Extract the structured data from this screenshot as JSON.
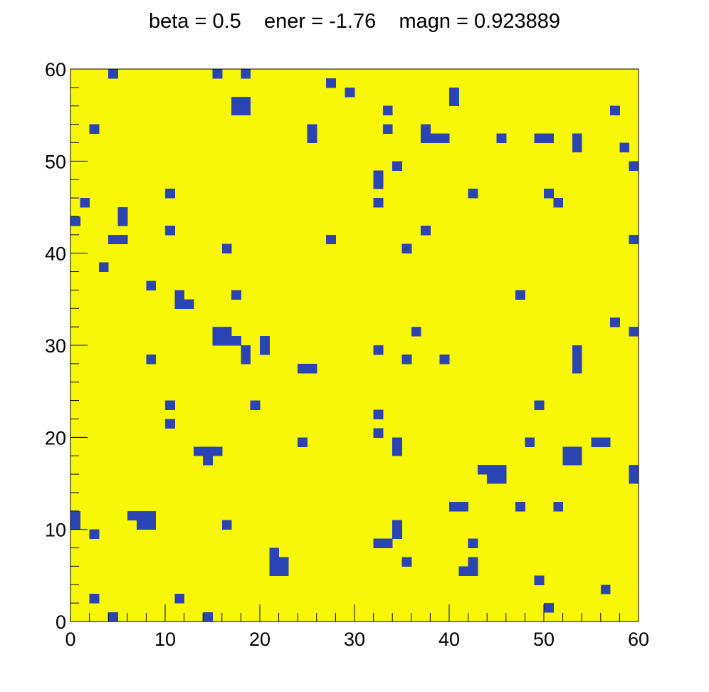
{
  "chart_data": {
    "type": "heatmap",
    "title": "beta = 0.5    ener = -1.76    magn = 0.923889",
    "xlabel": "",
    "ylabel": "",
    "xlim": [
      0,
      60
    ],
    "ylim": [
      0,
      60
    ],
    "grid_size": [
      60,
      60
    ],
    "x_ticks": [
      "0",
      "10",
      "20",
      "30",
      "40",
      "50",
      "60"
    ],
    "y_ticks": [
      "0",
      "10",
      "20",
      "30",
      "40",
      "50",
      "60"
    ],
    "colors": {
      "up": "#f7f707",
      "down": "#2b44b3"
    },
    "background_value": "up",
    "down_cells": [
      [
        4,
        59
      ],
      [
        15,
        59
      ],
      [
        18,
        59
      ],
      [
        27,
        58
      ],
      [
        29,
        57
      ],
      [
        40,
        57
      ],
      [
        40,
        56
      ],
      [
        17,
        56
      ],
      [
        18,
        56
      ],
      [
        17,
        55
      ],
      [
        18,
        55
      ],
      [
        33,
        55
      ],
      [
        57,
        55
      ],
      [
        2,
        53
      ],
      [
        25,
        53
      ],
      [
        33,
        53
      ],
      [
        37,
        53
      ],
      [
        25,
        52
      ],
      [
        37,
        52
      ],
      [
        38,
        52
      ],
      [
        39,
        52
      ],
      [
        45,
        52
      ],
      [
        49,
        52
      ],
      [
        50,
        52
      ],
      [
        53,
        52
      ],
      [
        53,
        51
      ],
      [
        58,
        51
      ],
      [
        34,
        49
      ],
      [
        59,
        49
      ],
      [
        32,
        48
      ],
      [
        32,
        47
      ],
      [
        10,
        46
      ],
      [
        42,
        46
      ],
      [
        50,
        46
      ],
      [
        1,
        45
      ],
      [
        32,
        45
      ],
      [
        51,
        45
      ],
      [
        5,
        44
      ],
      [
        5,
        43
      ],
      [
        0,
        43
      ],
      [
        10,
        42
      ],
      [
        37,
        42
      ],
      [
        4,
        41
      ],
      [
        5,
        41
      ],
      [
        27,
        41
      ],
      [
        59,
        41
      ],
      [
        16,
        40
      ],
      [
        35,
        40
      ],
      [
        3,
        38
      ],
      [
        8,
        36
      ],
      [
        11,
        35
      ],
      [
        17,
        35
      ],
      [
        47,
        35
      ],
      [
        11,
        34
      ],
      [
        12,
        34
      ],
      [
        57,
        32
      ],
      [
        15,
        31
      ],
      [
        16,
        31
      ],
      [
        36,
        31
      ],
      [
        59,
        31
      ],
      [
        15,
        30
      ],
      [
        16,
        30
      ],
      [
        17,
        30
      ],
      [
        20,
        30
      ],
      [
        20,
        29
      ],
      [
        18,
        29
      ],
      [
        32,
        29
      ],
      [
        53,
        29
      ],
      [
        8,
        28
      ],
      [
        18,
        28
      ],
      [
        35,
        28
      ],
      [
        39,
        28
      ],
      [
        53,
        28
      ],
      [
        24,
        27
      ],
      [
        25,
        27
      ],
      [
        53,
        27
      ],
      [
        10,
        23
      ],
      [
        19,
        23
      ],
      [
        49,
        23
      ],
      [
        32,
        22
      ],
      [
        10,
        21
      ],
      [
        32,
        20
      ],
      [
        24,
        19
      ],
      [
        34,
        19
      ],
      [
        48,
        19
      ],
      [
        55,
        19
      ],
      [
        56,
        19
      ],
      [
        34,
        18
      ],
      [
        13,
        18
      ],
      [
        14,
        18
      ],
      [
        15,
        18
      ],
      [
        52,
        18
      ],
      [
        53,
        18
      ],
      [
        14,
        17
      ],
      [
        52,
        17
      ],
      [
        53,
        17
      ],
      [
        43,
        16
      ],
      [
        44,
        16
      ],
      [
        45,
        16
      ],
      [
        59,
        16
      ],
      [
        44,
        15
      ],
      [
        45,
        15
      ],
      [
        59,
        15
      ],
      [
        40,
        12
      ],
      [
        41,
        12
      ],
      [
        47,
        12
      ],
      [
        51,
        12
      ],
      [
        0,
        11
      ],
      [
        6,
        11
      ],
      [
        7,
        11
      ],
      [
        8,
        11
      ],
      [
        0,
        10
      ],
      [
        7,
        10
      ],
      [
        8,
        10
      ],
      [
        16,
        10
      ],
      [
        34,
        10
      ],
      [
        2,
        9
      ],
      [
        34,
        9
      ],
      [
        32,
        8
      ],
      [
        33,
        8
      ],
      [
        42,
        8
      ],
      [
        21,
        7
      ],
      [
        21,
        6
      ],
      [
        22,
        6
      ],
      [
        35,
        6
      ],
      [
        42,
        6
      ],
      [
        21,
        5
      ],
      [
        22,
        5
      ],
      [
        41,
        5
      ],
      [
        42,
        5
      ],
      [
        49,
        4
      ],
      [
        56,
        3
      ],
      [
        2,
        2
      ],
      [
        11,
        2
      ],
      [
        50,
        1
      ],
      [
        4,
        0
      ],
      [
        14,
        0
      ]
    ]
  }
}
